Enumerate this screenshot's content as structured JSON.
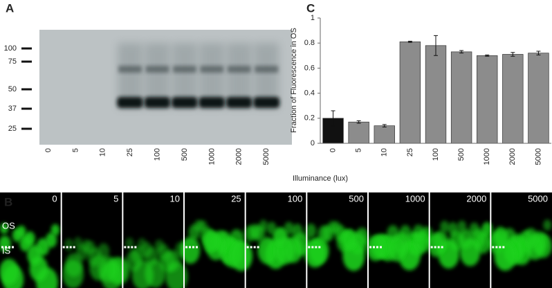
{
  "panels": {
    "a": "A",
    "b": "B",
    "c": "C"
  },
  "gel": {
    "markers": [
      "100",
      "75",
      "50",
      "37",
      "25"
    ],
    "lanes": [
      "0",
      "5",
      "10",
      "25",
      "100",
      "500",
      "1000",
      "2000",
      "5000"
    ]
  },
  "micrographs": {
    "labels": [
      "0",
      "5",
      "10",
      "25",
      "100",
      "500",
      "1000",
      "2000",
      "5000"
    ],
    "os": "OS",
    "is": "IS"
  },
  "chart_data": {
    "type": "bar",
    "y_label": "Fraction of Fluorescence in OS",
    "x_label": "Illuminance (lux)",
    "categories": [
      "0",
      "5",
      "10",
      "25",
      "100",
      "500",
      "1000",
      "2000",
      "5000"
    ],
    "values": [
      0.2,
      0.17,
      0.14,
      0.81,
      0.78,
      0.73,
      0.7,
      0.71,
      0.72
    ],
    "errors": [
      0.06,
      0.01,
      0.01,
      0.005,
      0.08,
      0.01,
      0.005,
      0.015,
      0.015
    ],
    "colors": [
      "#111111",
      "#8c8c8c",
      "#8c8c8c",
      "#8c8c8c",
      "#8c8c8c",
      "#8c8c8c",
      "#8c8c8c",
      "#8c8c8c",
      "#8c8c8c"
    ],
    "ylim": [
      0,
      1
    ],
    "yticks": [
      0,
      0.2,
      0.4,
      0.6,
      0.8,
      1
    ],
    "grid": false
  }
}
